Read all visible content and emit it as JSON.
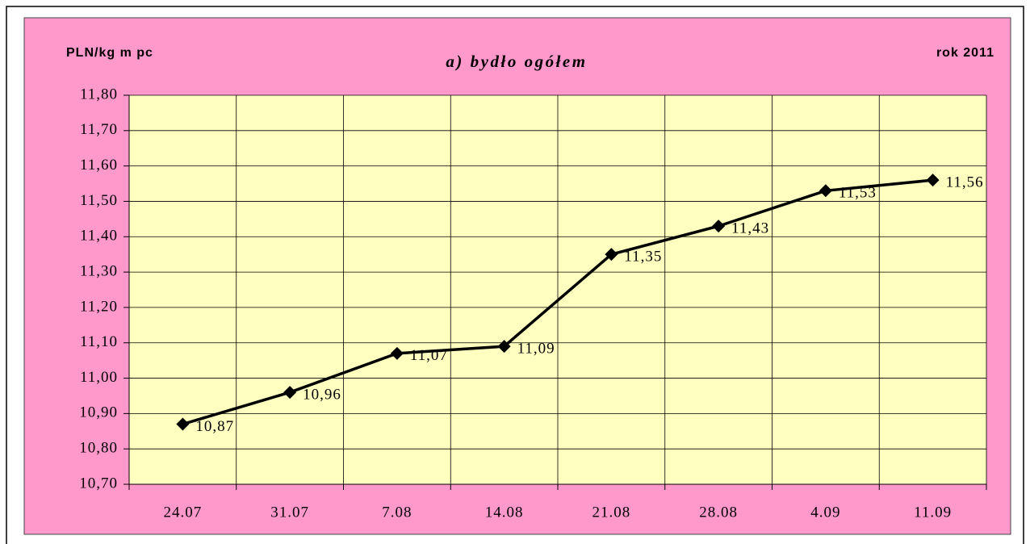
{
  "chart_data": {
    "type": "line",
    "title": "a) bydło ogółem",
    "y_axis_label": "PLN/kg m pc",
    "annotation": "rok 2011",
    "categories": [
      "24.07",
      "31.07",
      "7.08",
      "14.08",
      "21.08",
      "28.08",
      "4.09",
      "11.09"
    ],
    "values": [
      10.87,
      10.96,
      11.07,
      11.09,
      11.35,
      11.43,
      11.53,
      11.56
    ],
    "value_labels": [
      "10,87",
      "10,96",
      "11,07",
      "11,09",
      "11,35",
      "11,43",
      "11,53",
      "11,56"
    ],
    "color": "#000000",
    "ylim": [
      10.7,
      11.8
    ],
    "yticks": [
      {
        "value": 10.7,
        "label": "10,70"
      },
      {
        "value": 10.8,
        "label": "10,80"
      },
      {
        "value": 10.9,
        "label": "10,90"
      },
      {
        "value": 11.0,
        "label": "11,00"
      },
      {
        "value": 11.1,
        "label": "11,10"
      },
      {
        "value": 11.2,
        "label": "11,20"
      },
      {
        "value": 11.3,
        "label": "11,30"
      },
      {
        "value": 11.4,
        "label": "11,40"
      },
      {
        "value": 11.5,
        "label": "11,50"
      },
      {
        "value": 11.6,
        "label": "11,60"
      },
      {
        "value": 11.7,
        "label": "11,70"
      },
      {
        "value": 11.8,
        "label": "11,80"
      }
    ],
    "grid": true
  }
}
